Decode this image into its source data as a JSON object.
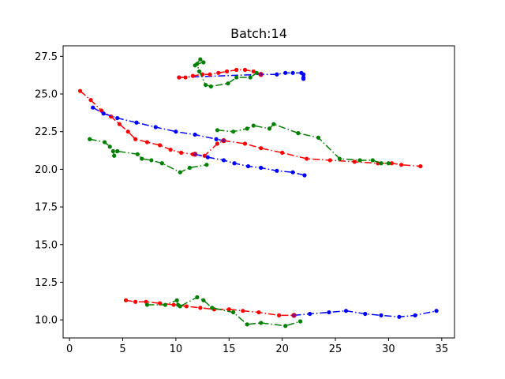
{
  "chart_data": {
    "type": "line",
    "title": "Batch:14",
    "xlabel": "",
    "ylabel": "",
    "xlim": [
      -0.6,
      36.2
    ],
    "ylim": [
      8.8,
      28.2
    ],
    "xticks": [
      0,
      5,
      10,
      15,
      20,
      25,
      30,
      35
    ],
    "yticks": [
      10.0,
      12.5,
      15.0,
      17.5,
      20.0,
      22.5,
      25.0,
      27.5
    ],
    "xtick_labels": [
      "0",
      "5",
      "10",
      "15",
      "20",
      "25",
      "30",
      "35"
    ],
    "ytick_labels": [
      "10.0",
      "12.5",
      "15.0",
      "17.5",
      "20.0",
      "22.5",
      "25.0",
      "27.5"
    ],
    "grid": false,
    "legend": "none",
    "series": [
      {
        "color": "#0000ff",
        "linestyle": "dashdot",
        "points": [
          [
            10.3,
            26.1
          ],
          [
            18.0,
            26.3
          ],
          [
            19.5,
            26.3
          ],
          [
            20.3,
            26.4
          ],
          [
            21.0,
            26.4
          ],
          [
            21.8,
            26.4
          ],
          [
            22.0,
            26.3
          ],
          [
            22.0,
            26.1
          ],
          [
            22.0,
            26.0
          ]
        ]
      },
      {
        "color": "#ff0000",
        "linestyle": "dashdot",
        "points": [
          [
            10.3,
            26.1
          ],
          [
            10.9,
            26.1
          ],
          [
            11.6,
            26.2
          ],
          [
            12.5,
            26.3
          ],
          [
            13.2,
            26.3
          ],
          [
            14.0,
            26.4
          ],
          [
            14.8,
            26.5
          ],
          [
            15.7,
            26.6
          ],
          [
            16.5,
            26.6
          ],
          [
            17.3,
            26.5
          ],
          [
            18.0,
            26.3
          ]
        ]
      },
      {
        "color": "#008000",
        "linestyle": "dashdot",
        "points": [
          [
            11.8,
            26.9
          ],
          [
            12.3,
            27.3
          ],
          [
            12.6,
            27.1
          ],
          [
            12.0,
            27.0
          ],
          [
            12.2,
            26.5
          ],
          [
            12.8,
            25.6
          ],
          [
            13.3,
            25.5
          ],
          [
            14.9,
            25.7
          ],
          [
            15.7,
            26.1
          ],
          [
            17.0,
            26.1
          ],
          [
            17.6,
            26.4
          ],
          [
            18.0,
            26.3
          ]
        ]
      },
      {
        "color": "#ff0000",
        "linestyle": "dashdot",
        "points": [
          [
            1.0,
            25.2
          ],
          [
            2.0,
            24.6
          ],
          [
            3.0,
            23.9
          ],
          [
            3.9,
            23.5
          ],
          [
            4.7,
            23.0
          ],
          [
            5.5,
            22.5
          ],
          [
            6.2,
            22.0
          ],
          [
            7.3,
            21.8
          ],
          [
            8.5,
            21.6
          ],
          [
            9.5,
            21.3
          ],
          [
            10.5,
            21.1
          ],
          [
            11.6,
            21.0
          ],
          [
            12.7,
            20.9
          ],
          [
            13.9,
            21.7
          ],
          [
            14.5,
            21.9
          ],
          [
            16.5,
            21.7
          ],
          [
            18.0,
            21.4
          ],
          [
            20.0,
            21.1
          ],
          [
            22.3,
            20.7
          ],
          [
            24.5,
            20.6
          ],
          [
            26.8,
            20.5
          ],
          [
            29.0,
            20.4
          ],
          [
            30.3,
            20.4
          ],
          [
            31.2,
            20.3
          ],
          [
            33.0,
            20.2
          ]
        ]
      },
      {
        "color": "#0000ff",
        "linestyle": "dashdot",
        "points": [
          [
            2.2,
            24.1
          ],
          [
            3.2,
            23.7
          ],
          [
            4.5,
            23.4
          ],
          [
            6.3,
            23.1
          ],
          [
            8.1,
            22.8
          ],
          [
            10.0,
            22.5
          ],
          [
            11.8,
            22.3
          ],
          [
            13.8,
            22.0
          ],
          [
            14.5,
            21.9
          ]
        ]
      },
      {
        "color": "#0000ff",
        "linestyle": "dashdot",
        "points": [
          [
            11.8,
            21.0
          ],
          [
            13.0,
            20.8
          ],
          [
            14.5,
            20.6
          ],
          [
            15.5,
            20.4
          ],
          [
            16.8,
            20.2
          ],
          [
            18.0,
            20.1
          ],
          [
            19.5,
            19.9
          ],
          [
            21.0,
            19.8
          ],
          [
            22.1,
            19.6
          ]
        ]
      },
      {
        "color": "#008000",
        "linestyle": "dashdot",
        "points": [
          [
            1.9,
            22.0
          ],
          [
            3.3,
            21.8
          ],
          [
            3.8,
            21.5
          ],
          [
            4.1,
            21.2
          ],
          [
            4.2,
            20.9
          ],
          [
            4.5,
            21.2
          ],
          [
            6.4,
            21.0
          ],
          [
            6.8,
            20.7
          ],
          [
            7.7,
            20.6
          ],
          [
            8.7,
            20.4
          ],
          [
            10.4,
            19.8
          ],
          [
            11.3,
            20.1
          ],
          [
            12.9,
            20.3
          ]
        ]
      },
      {
        "color": "#008000",
        "linestyle": "dashdot",
        "points": [
          [
            13.9,
            22.6
          ],
          [
            15.4,
            22.5
          ],
          [
            16.7,
            22.7
          ],
          [
            17.3,
            22.9
          ],
          [
            18.8,
            22.7
          ],
          [
            19.2,
            23.0
          ],
          [
            21.5,
            22.4
          ],
          [
            23.4,
            22.1
          ],
          [
            25.4,
            20.7
          ],
          [
            27.3,
            20.6
          ],
          [
            28.5,
            20.6
          ],
          [
            29.3,
            20.4
          ],
          [
            30.0,
            20.4
          ]
        ]
      },
      {
        "color": "#ff0000",
        "linestyle": "dashdot",
        "points": [
          [
            5.3,
            11.3
          ],
          [
            6.2,
            11.2
          ],
          [
            7.2,
            11.2
          ],
          [
            8.5,
            11.1
          ],
          [
            9.8,
            11.0
          ],
          [
            11.0,
            10.9
          ],
          [
            12.3,
            10.8
          ],
          [
            13.6,
            10.7
          ],
          [
            15.0,
            10.7
          ],
          [
            16.3,
            10.6
          ],
          [
            17.8,
            10.5
          ],
          [
            19.7,
            10.3
          ],
          [
            21.1,
            10.3
          ]
        ]
      },
      {
        "color": "#0000ff",
        "linestyle": "dashdot",
        "points": [
          [
            21.1,
            10.3
          ],
          [
            22.6,
            10.4
          ],
          [
            24.4,
            10.5
          ],
          [
            26.0,
            10.6
          ],
          [
            27.8,
            10.4
          ],
          [
            29.3,
            10.3
          ],
          [
            31.0,
            10.2
          ],
          [
            32.5,
            10.3
          ],
          [
            34.5,
            10.6
          ]
        ]
      },
      {
        "color": "#008000",
        "linestyle": "dashdot",
        "points": [
          [
            7.3,
            11.0
          ],
          [
            9.0,
            11.0
          ],
          [
            10.1,
            11.3
          ],
          [
            10.2,
            11.0
          ],
          [
            10.4,
            10.9
          ],
          [
            12.0,
            11.5
          ],
          [
            12.6,
            11.3
          ],
          [
            13.4,
            10.8
          ],
          [
            15.4,
            10.5
          ],
          [
            16.7,
            9.7
          ],
          [
            18.0,
            9.8
          ],
          [
            20.3,
            9.6
          ],
          [
            21.7,
            9.9
          ]
        ]
      }
    ],
    "highlight_points": [
      [
        11.8,
        21.0
      ],
      [
        14.5,
        21.9
      ],
      [
        18.0,
        26.3
      ],
      [
        21.1,
        10.3
      ]
    ],
    "highlight_color": "#800080"
  }
}
